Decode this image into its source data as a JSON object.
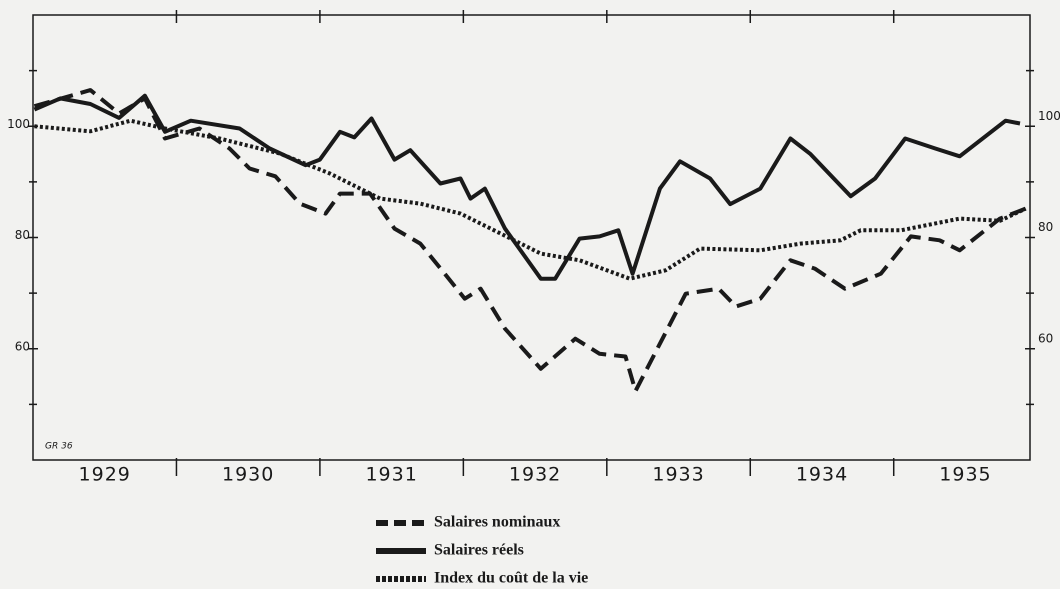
{
  "chart_data": {
    "type": "line",
    "note": "GR 36",
    "xlim": [
      1929,
      1935.95
    ],
    "ylim": [
      40,
      120
    ],
    "yticks": [
      60,
      80,
      100
    ],
    "minor_yticks": [
      50,
      70,
      90,
      110
    ],
    "xticks": [
      {
        "value": 1929.5,
        "label": "1929"
      },
      {
        "value": 1930.5,
        "label": "1930"
      },
      {
        "value": 1931.5,
        "label": "1931"
      },
      {
        "value": 1932.5,
        "label": "1932"
      },
      {
        "value": 1933.5,
        "label": "1933"
      },
      {
        "value": 1934.5,
        "label": "1934"
      },
      {
        "value": 1935.5,
        "label": "1935"
      }
    ],
    "x_dividers": [
      1930,
      1931,
      1932,
      1933,
      1934,
      1935
    ],
    "series": [
      {
        "name": "Salaires nominaux",
        "color": "#1a1a1a",
        "style": "dashed",
        "x": [
          1929.01,
          1929.4,
          1929.6,
          1929.78,
          1929.92,
          1930.16,
          1930.37,
          1930.51,
          1930.69,
          1930.86,
          1931.04,
          1931.14,
          1931.35,
          1931.52,
          1931.7,
          1931.87,
          1932.01,
          1932.12,
          1932.29,
          1932.54,
          1932.78,
          1932.95,
          1933.13,
          1933.2,
          1933.37,
          1933.55,
          1933.78,
          1933.9,
          1934.07,
          1934.28,
          1934.45,
          1934.66,
          1934.91,
          1935.12,
          1935.32,
          1935.46,
          1935.74,
          1935.92
        ],
        "values": [
          103.6,
          106.5,
          102.3,
          105,
          97.8,
          99.6,
          96,
          92.4,
          91,
          86.1,
          84.3,
          87.9,
          87.9,
          81.6,
          78.9,
          73.5,
          69,
          70.8,
          63.6,
          56.4,
          61.8,
          59.1,
          58.6,
          52.4,
          60.9,
          69.9,
          70.8,
          67.6,
          69,
          75.9,
          74.4,
          70.8,
          73.5,
          80.2,
          79.5,
          77.7,
          83.4,
          85.2
        ]
      },
      {
        "name": "Salaires réels",
        "color": "#1a1a1a",
        "style": "solid",
        "x": [
          1929.01,
          1929.19,
          1929.4,
          1929.6,
          1929.78,
          1929.92,
          1930.1,
          1930.44,
          1930.65,
          1930.9,
          1931.0,
          1931.14,
          1931.24,
          1931.36,
          1931.52,
          1931.63,
          1931.84,
          1931.98,
          1932.05,
          1932.15,
          1932.29,
          1932.54,
          1932.64,
          1932.81,
          1932.95,
          1933.08,
          1933.18,
          1933.37,
          1933.51,
          1933.72,
          1933.86,
          1934.07,
          1934.28,
          1934.42,
          1934.7,
          1934.87,
          1935.08,
          1935.29,
          1935.46,
          1935.78,
          1935.88
        ],
        "values": [
          103,
          105,
          104,
          101.5,
          105.5,
          99,
          101,
          99.6,
          96,
          93,
          94,
          99,
          98,
          101.4,
          94,
          95.7,
          89.7,
          90.6,
          87,
          88.8,
          81.6,
          72.6,
          72.6,
          79.8,
          80.2,
          81.3,
          73.5,
          88.8,
          93.7,
          90.6,
          86,
          88.8,
          97.8,
          95,
          87.4,
          90.6,
          97.8,
          96,
          94.6,
          101,
          100.5
        ]
      },
      {
        "name": "Index du coût de la vie",
        "color": "#1a1a1a",
        "style": "dotted",
        "x": [
          1929.01,
          1929.4,
          1929.68,
          1929.92,
          1930.3,
          1930.72,
          1931.07,
          1931.42,
          1931.7,
          1931.98,
          1932.26,
          1932.54,
          1932.81,
          1933.16,
          1933.41,
          1933.65,
          1934.07,
          1934.35,
          1934.63,
          1934.77,
          1935.05,
          1935.46,
          1935.74,
          1935.92
        ],
        "values": [
          100,
          99.1,
          101,
          99.6,
          97.8,
          95.1,
          91.5,
          87,
          86.1,
          84.3,
          80.7,
          77.1,
          75.9,
          72.6,
          74.1,
          78,
          77.7,
          78.9,
          79.5,
          81.3,
          81.3,
          83.4,
          83,
          85.2
        ]
      }
    ]
  }
}
